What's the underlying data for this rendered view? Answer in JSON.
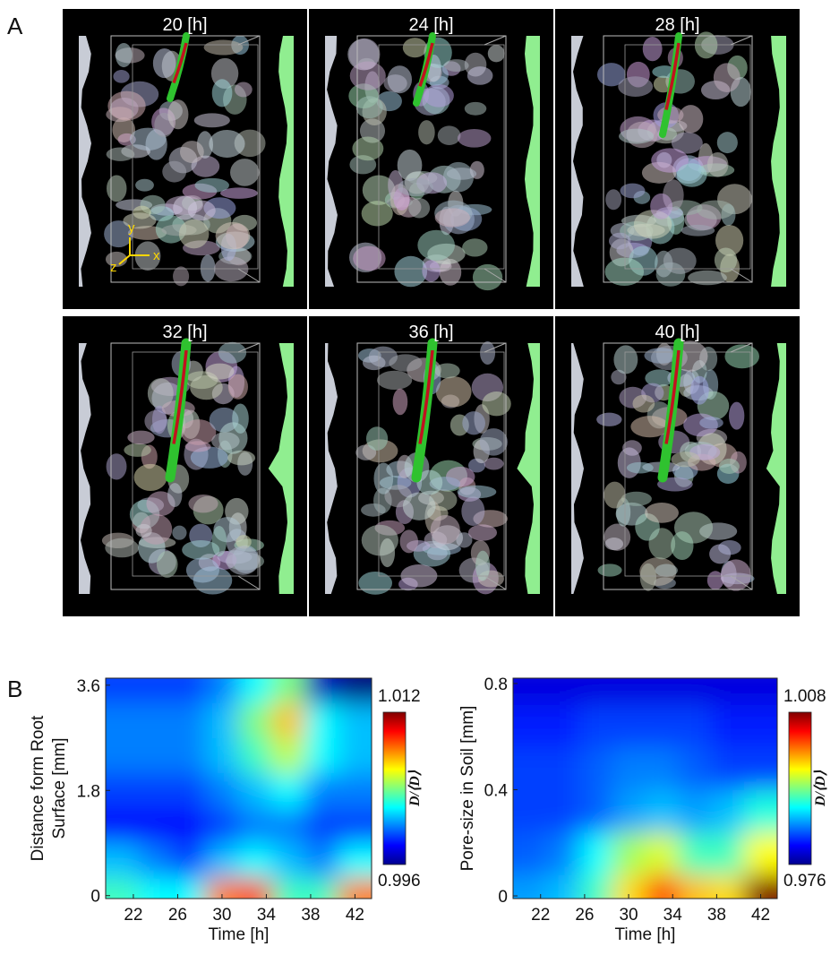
{
  "panel_a": {
    "label": "A",
    "frames": [
      "20 [h]",
      "24 [h]",
      "28 [h]",
      "32 [h]",
      "36 [h]",
      "40 [h]"
    ],
    "axes_labels": [
      "y",
      "x",
      "z"
    ]
  },
  "panel_b": {
    "label": "B"
  },
  "chart_data": [
    {
      "type": "heatmap",
      "xlabel": "Time [h]",
      "ylabel": [
        "Distance form Root",
        "Surface [mm]"
      ],
      "x": [
        21,
        24,
        27,
        30,
        33,
        36,
        39,
        42
      ],
      "y": [
        0,
        0.6,
        1.2,
        1.8,
        2.4,
        3.0,
        3.6
      ],
      "values": [
        [
          1.003,
          1.002,
          1.002,
          1.008,
          1.009,
          1.003,
          1.003,
          1.008
        ],
        [
          1.001,
          1.0,
          0.999,
          1.001,
          1.002,
          1.001,
          1.0,
          1.002
        ],
        [
          0.998,
          0.998,
          0.998,
          0.999,
          1.0,
          1.0,
          0.999,
          0.999
        ],
        [
          0.999,
          0.999,
          0.999,
          1.0,
          1.001,
          1.002,
          1.0,
          1.0
        ],
        [
          1.0,
          1.0,
          1.0,
          1.001,
          1.003,
          1.005,
          1.002,
          1.001
        ],
        [
          1.0,
          1.0,
          1.0,
          1.001,
          1.004,
          1.007,
          1.002,
          1.001
        ],
        [
          0.999,
          0.999,
          0.999,
          1.0,
          1.002,
          1.004,
          0.997,
          0.996
        ]
      ],
      "xlim": [
        19.5,
        43.5
      ],
      "ylim": [
        -0.05,
        3.72
      ],
      "xticks": [
        22,
        26,
        30,
        34,
        38,
        42
      ],
      "yticks": [
        0,
        1.8,
        3.6
      ],
      "colorbar": {
        "lim": [
          0.996,
          1.012
        ],
        "label": "D/⟨D⟩"
      },
      "colormap": "jet"
    },
    {
      "type": "heatmap",
      "xlabel": "Time [h]",
      "ylabel": [
        "Pore-size in Soil [mm]"
      ],
      "x": [
        21,
        24,
        27,
        30,
        33,
        36,
        39,
        42
      ],
      "y": [
        0,
        0.16,
        0.32,
        0.48,
        0.64,
        0.8
      ],
      "values": [
        [
          0.985,
          0.986,
          0.99,
          0.997,
          1.002,
          0.998,
          0.997,
          1.008
        ],
        [
          0.983,
          0.984,
          0.988,
          0.993,
          0.995,
          0.99,
          0.99,
          0.996
        ],
        [
          0.982,
          0.982,
          0.983,
          0.985,
          0.986,
          0.985,
          0.986,
          0.989
        ],
        [
          0.982,
          0.982,
          0.983,
          0.984,
          0.984,
          0.983,
          0.982,
          0.982
        ],
        [
          0.981,
          0.981,
          0.982,
          0.982,
          0.982,
          0.982,
          0.981,
          0.981
        ],
        [
          0.979,
          0.979,
          0.979,
          0.979,
          0.979,
          0.979,
          0.979,
          0.979
        ]
      ],
      "xlim": [
        19.5,
        43.5
      ],
      "ylim": [
        -0.01,
        0.82
      ],
      "xticks": [
        22,
        26,
        30,
        34,
        38,
        42
      ],
      "yticks": [
        0,
        0.4,
        0.8
      ],
      "colorbar": {
        "lim": [
          0.976,
          1.008
        ],
        "label": "D/⟨D⟩"
      },
      "colormap": "jet"
    }
  ]
}
